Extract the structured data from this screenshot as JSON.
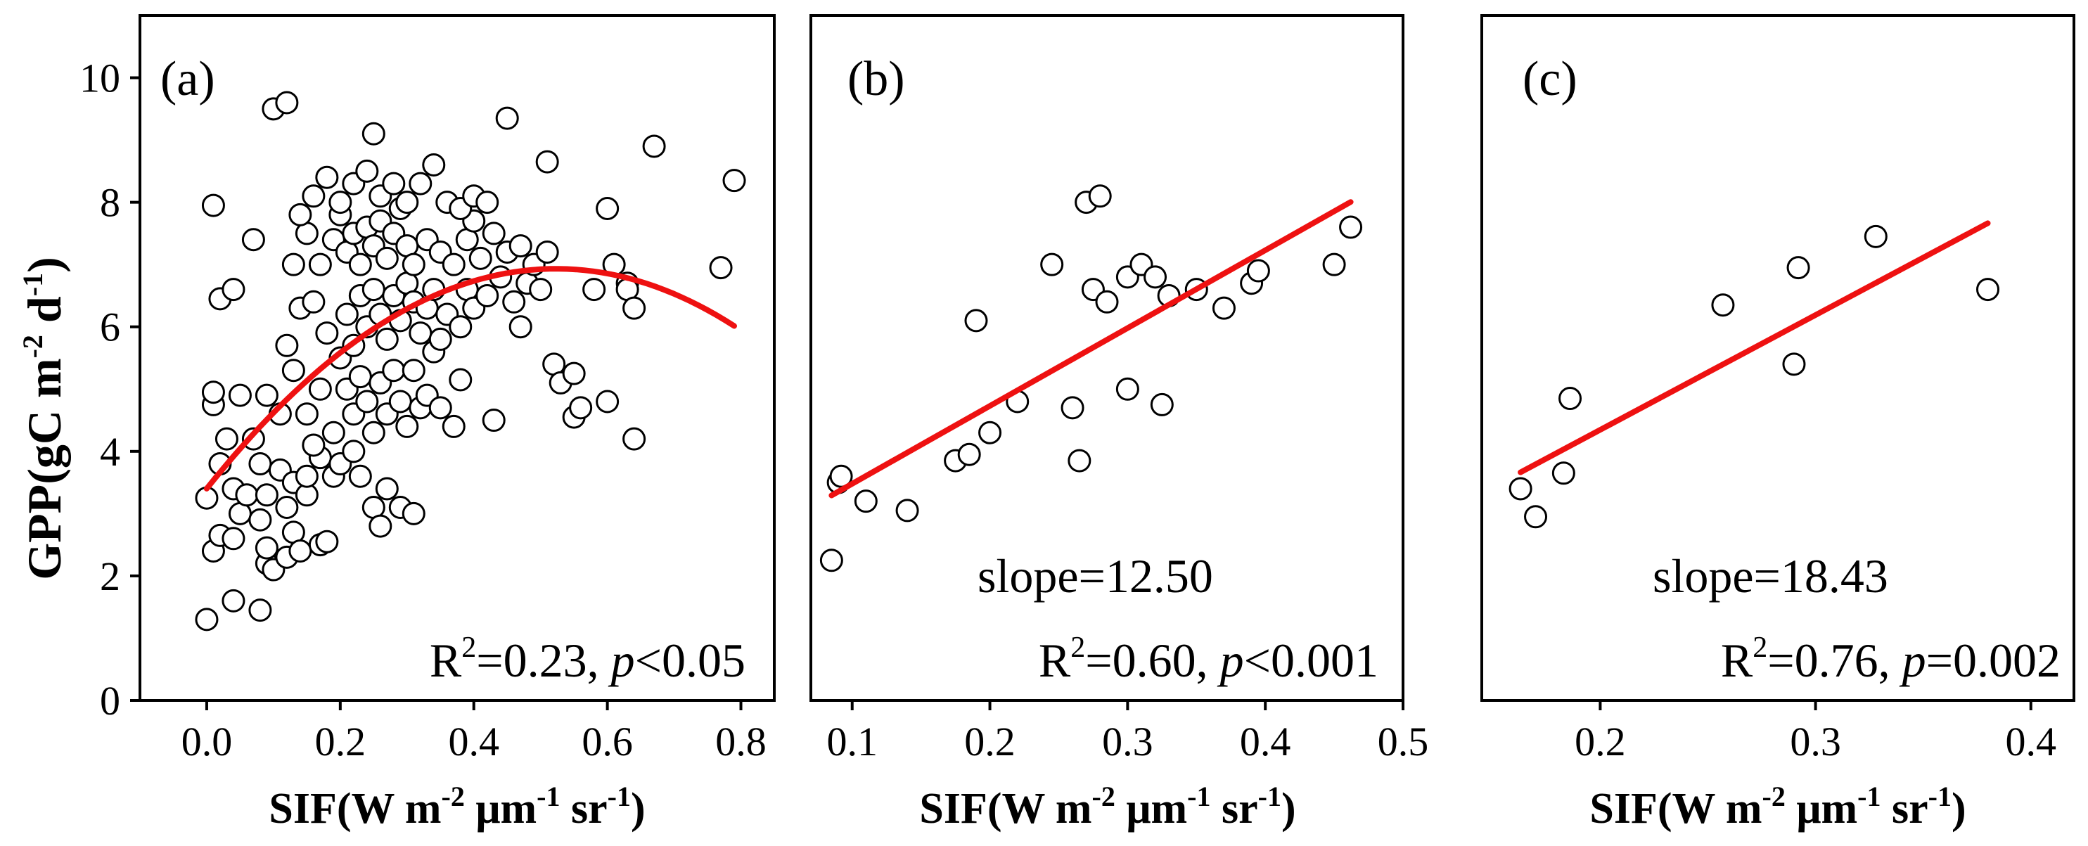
{
  "colors": {
    "fit_line": "#ee1111",
    "marker_edge": "#000000",
    "marker_fill": "#ffffff"
  },
  "axis_titles": {
    "y": {
      "base": "GPP(gC m",
      "sup1": "-2",
      "mid": " d",
      "sup2": "-1",
      "end": ")"
    },
    "x": {
      "base": "SIF(W m",
      "sup1": "-2",
      "mid1": " μm",
      "sup2": "-1",
      "mid2": " sr",
      "sup3": "-1",
      "end": ")"
    }
  },
  "chart_data": [
    {
      "type": "scatter",
      "panel_label": "(a)",
      "xlim": [
        -0.1,
        0.85
      ],
      "ylim": [
        0,
        11
      ],
      "xticks": [
        "0.0",
        "0.2",
        "0.4",
        "0.6",
        "0.8"
      ],
      "yticks": [
        "0",
        "2",
        "4",
        "6",
        "8",
        "10"
      ],
      "stats": {
        "slope_text": "",
        "r2_label": "R",
        "r2_sup": "2",
        "r2_value": "=0.23, ",
        "p_symbol": "p",
        "p_value": "<0.05"
      },
      "fit": {
        "type": "quadratic",
        "x_range": [
          0.0,
          0.79
        ],
        "coef": [
          3.4,
          13.5,
          -12.9
        ]
      },
      "points": [
        [
          0.0,
          1.3
        ],
        [
          0.04,
          1.6
        ],
        [
          0.08,
          1.45
        ],
        [
          0.01,
          2.4
        ],
        [
          0.02,
          2.65
        ],
        [
          0.04,
          2.6
        ],
        [
          0.05,
          3.0
        ],
        [
          0.08,
          2.9
        ],
        [
          0.09,
          2.2
        ],
        [
          0.09,
          2.45
        ],
        [
          0.1,
          2.1
        ],
        [
          0.12,
          2.3
        ],
        [
          0.13,
          2.7
        ],
        [
          0.14,
          2.4
        ],
        [
          0.17,
          2.5
        ],
        [
          0.18,
          2.55
        ],
        [
          0.0,
          3.25
        ],
        [
          0.02,
          3.8
        ],
        [
          0.04,
          3.4
        ],
        [
          0.06,
          3.3
        ],
        [
          0.08,
          3.8
        ],
        [
          0.09,
          3.3
        ],
        [
          0.11,
          3.7
        ],
        [
          0.12,
          3.1
        ],
        [
          0.13,
          3.5
        ],
        [
          0.15,
          3.3
        ],
        [
          0.15,
          3.6
        ],
        [
          0.17,
          3.9
        ],
        [
          0.19,
          3.6
        ],
        [
          0.2,
          3.8
        ],
        [
          0.22,
          4.0
        ],
        [
          0.23,
          3.6
        ],
        [
          0.25,
          3.1
        ],
        [
          0.26,
          2.8
        ],
        [
          0.27,
          3.4
        ],
        [
          0.29,
          3.1
        ],
        [
          0.31,
          3.0
        ],
        [
          0.03,
          4.2
        ],
        [
          0.05,
          4.9
        ],
        [
          0.07,
          4.2
        ],
        [
          0.09,
          4.9
        ],
        [
          0.11,
          4.6
        ],
        [
          0.13,
          5.3
        ],
        [
          0.15,
          4.6
        ],
        [
          0.16,
          4.1
        ],
        [
          0.17,
          5.0
        ],
        [
          0.19,
          4.3
        ],
        [
          0.21,
          5.0
        ],
        [
          0.22,
          4.6
        ],
        [
          0.23,
          5.2
        ],
        [
          0.24,
          4.8
        ],
        [
          0.25,
          4.3
        ],
        [
          0.26,
          5.1
        ],
        [
          0.27,
          4.6
        ],
        [
          0.28,
          5.3
        ],
        [
          0.29,
          4.8
        ],
        [
          0.3,
          4.4
        ],
        [
          0.31,
          5.3
        ],
        [
          0.32,
          4.7
        ],
        [
          0.33,
          4.9
        ],
        [
          0.34,
          5.6
        ],
        [
          0.35,
          4.7
        ],
        [
          0.37,
          4.4
        ],
        [
          0.01,
          4.75
        ],
        [
          0.01,
          4.95
        ],
        [
          0.12,
          5.7
        ],
        [
          0.14,
          6.3
        ],
        [
          0.16,
          6.4
        ],
        [
          0.18,
          5.9
        ],
        [
          0.2,
          5.5
        ],
        [
          0.21,
          6.2
        ],
        [
          0.22,
          5.7
        ],
        [
          0.23,
          6.5
        ],
        [
          0.24,
          6.0
        ],
        [
          0.25,
          6.6
        ],
        [
          0.26,
          6.2
        ],
        [
          0.27,
          5.8
        ],
        [
          0.28,
          6.5
        ],
        [
          0.29,
          6.1
        ],
        [
          0.3,
          6.7
        ],
        [
          0.31,
          6.4
        ],
        [
          0.32,
          5.9
        ],
        [
          0.33,
          6.3
        ],
        [
          0.34,
          6.6
        ],
        [
          0.35,
          5.8
        ],
        [
          0.36,
          6.2
        ],
        [
          0.38,
          6.0
        ],
        [
          0.39,
          6.6
        ],
        [
          0.4,
          6.3
        ],
        [
          0.42,
          6.5
        ],
        [
          0.44,
          6.8
        ],
        [
          0.46,
          6.4
        ],
        [
          0.48,
          6.7
        ],
        [
          0.5,
          6.6
        ],
        [
          0.13,
          7.0
        ],
        [
          0.15,
          7.5
        ],
        [
          0.17,
          7.0
        ],
        [
          0.19,
          7.4
        ],
        [
          0.2,
          7.8
        ],
        [
          0.21,
          7.2
        ],
        [
          0.22,
          7.5
        ],
        [
          0.23,
          7.0
        ],
        [
          0.24,
          7.6
        ],
        [
          0.25,
          7.3
        ],
        [
          0.26,
          7.7
        ],
        [
          0.27,
          7.1
        ],
        [
          0.28,
          7.5
        ],
        [
          0.29,
          7.9
        ],
        [
          0.3,
          7.3
        ],
        [
          0.31,
          7.0
        ],
        [
          0.33,
          7.4
        ],
        [
          0.35,
          7.2
        ],
        [
          0.37,
          7.0
        ],
        [
          0.39,
          7.4
        ],
        [
          0.4,
          7.7
        ],
        [
          0.41,
          7.1
        ],
        [
          0.43,
          7.5
        ],
        [
          0.45,
          7.2
        ],
        [
          0.47,
          7.3
        ],
        [
          0.49,
          7.0
        ],
        [
          0.51,
          7.2
        ],
        [
          0.14,
          7.8
        ],
        [
          0.16,
          8.1
        ],
        [
          0.18,
          8.4
        ],
        [
          0.2,
          8.0
        ],
        [
          0.22,
          8.3
        ],
        [
          0.24,
          8.5
        ],
        [
          0.26,
          8.1
        ],
        [
          0.28,
          8.3
        ],
        [
          0.3,
          8.0
        ],
        [
          0.32,
          8.3
        ],
        [
          0.34,
          8.6
        ],
        [
          0.36,
          8.0
        ],
        [
          0.38,
          7.9
        ],
        [
          0.4,
          8.1
        ],
        [
          0.42,
          8.0
        ],
        [
          0.01,
          7.95
        ],
        [
          0.07,
          7.4
        ],
        [
          0.02,
          6.45
        ],
        [
          0.04,
          6.6
        ],
        [
          0.1,
          9.5
        ],
        [
          0.12,
          9.6
        ],
        [
          0.25,
          9.1
        ],
        [
          0.45,
          9.35
        ],
        [
          0.51,
          8.65
        ],
        [
          0.6,
          7.9
        ],
        [
          0.67,
          8.9
        ],
        [
          0.79,
          8.35
        ],
        [
          0.61,
          7.0
        ],
        [
          0.63,
          6.7
        ],
        [
          0.63,
          6.6
        ],
        [
          0.64,
          6.3
        ],
        [
          0.77,
          6.95
        ],
        [
          0.47,
          6.0
        ],
        [
          0.52,
          5.4
        ],
        [
          0.53,
          5.1
        ],
        [
          0.55,
          5.25
        ],
        [
          0.55,
          4.55
        ],
        [
          0.56,
          4.7
        ],
        [
          0.6,
          4.8
        ],
        [
          0.64,
          4.2
        ],
        [
          0.43,
          4.5
        ],
        [
          0.38,
          5.15
        ],
        [
          0.58,
          6.6
        ]
      ]
    },
    {
      "type": "scatter",
      "panel_label": "(b)",
      "xlim": [
        0.07,
        0.5
      ],
      "ylim": [
        0,
        11
      ],
      "xticks": [
        "0.1",
        "0.2",
        "0.3",
        "0.4",
        "0.5"
      ],
      "stats": {
        "slope_text": "slope=12.50",
        "r2_label": "R",
        "r2_sup": "2",
        "r2_value": "=0.60, ",
        "p_symbol": "p",
        "p_value": "<0.001"
      },
      "fit": {
        "type": "linear",
        "x_range": [
          0.085,
          0.462
        ],
        "coef": [
          2.23,
          12.5
        ]
      },
      "points": [
        [
          0.085,
          2.25
        ],
        [
          0.09,
          3.5
        ],
        [
          0.092,
          3.6
        ],
        [
          0.11,
          3.2
        ],
        [
          0.14,
          3.05
        ],
        [
          0.175,
          3.85
        ],
        [
          0.185,
          3.95
        ],
        [
          0.19,
          6.1
        ],
        [
          0.2,
          4.3
        ],
        [
          0.22,
          4.8
        ],
        [
          0.245,
          7.0
        ],
        [
          0.26,
          4.7
        ],
        [
          0.265,
          3.85
        ],
        [
          0.27,
          8.0
        ],
        [
          0.275,
          6.6
        ],
        [
          0.28,
          8.1
        ],
        [
          0.285,
          6.4
        ],
        [
          0.3,
          6.8
        ],
        [
          0.3,
          5.0
        ],
        [
          0.31,
          7.0
        ],
        [
          0.32,
          6.8
        ],
        [
          0.325,
          4.75
        ],
        [
          0.33,
          6.5
        ],
        [
          0.35,
          6.6
        ],
        [
          0.37,
          6.3
        ],
        [
          0.39,
          6.7
        ],
        [
          0.395,
          6.9
        ],
        [
          0.45,
          7.0
        ],
        [
          0.462,
          7.6
        ]
      ]
    },
    {
      "type": "scatter",
      "panel_label": "(c)",
      "xlim": [
        0.145,
        0.42
      ],
      "ylim": [
        0,
        11
      ],
      "xticks": [
        "0.2",
        "0.3",
        "0.4"
      ],
      "stats": {
        "slope_text": "slope=18.43",
        "r2_label": "R",
        "r2_sup": "2",
        "r2_value": "=0.76, ",
        "p_symbol": "p",
        "p_value": "=0.002"
      },
      "fit": {
        "type": "linear",
        "x_range": [
          0.163,
          0.38
        ],
        "coef": [
          0.66,
          18.43
        ]
      },
      "points": [
        [
          0.163,
          3.4
        ],
        [
          0.17,
          2.95
        ],
        [
          0.183,
          3.65
        ],
        [
          0.186,
          4.85
        ],
        [
          0.257,
          6.35
        ],
        [
          0.29,
          5.4
        ],
        [
          0.292,
          6.95
        ],
        [
          0.328,
          7.45
        ],
        [
          0.38,
          6.6
        ]
      ]
    }
  ]
}
